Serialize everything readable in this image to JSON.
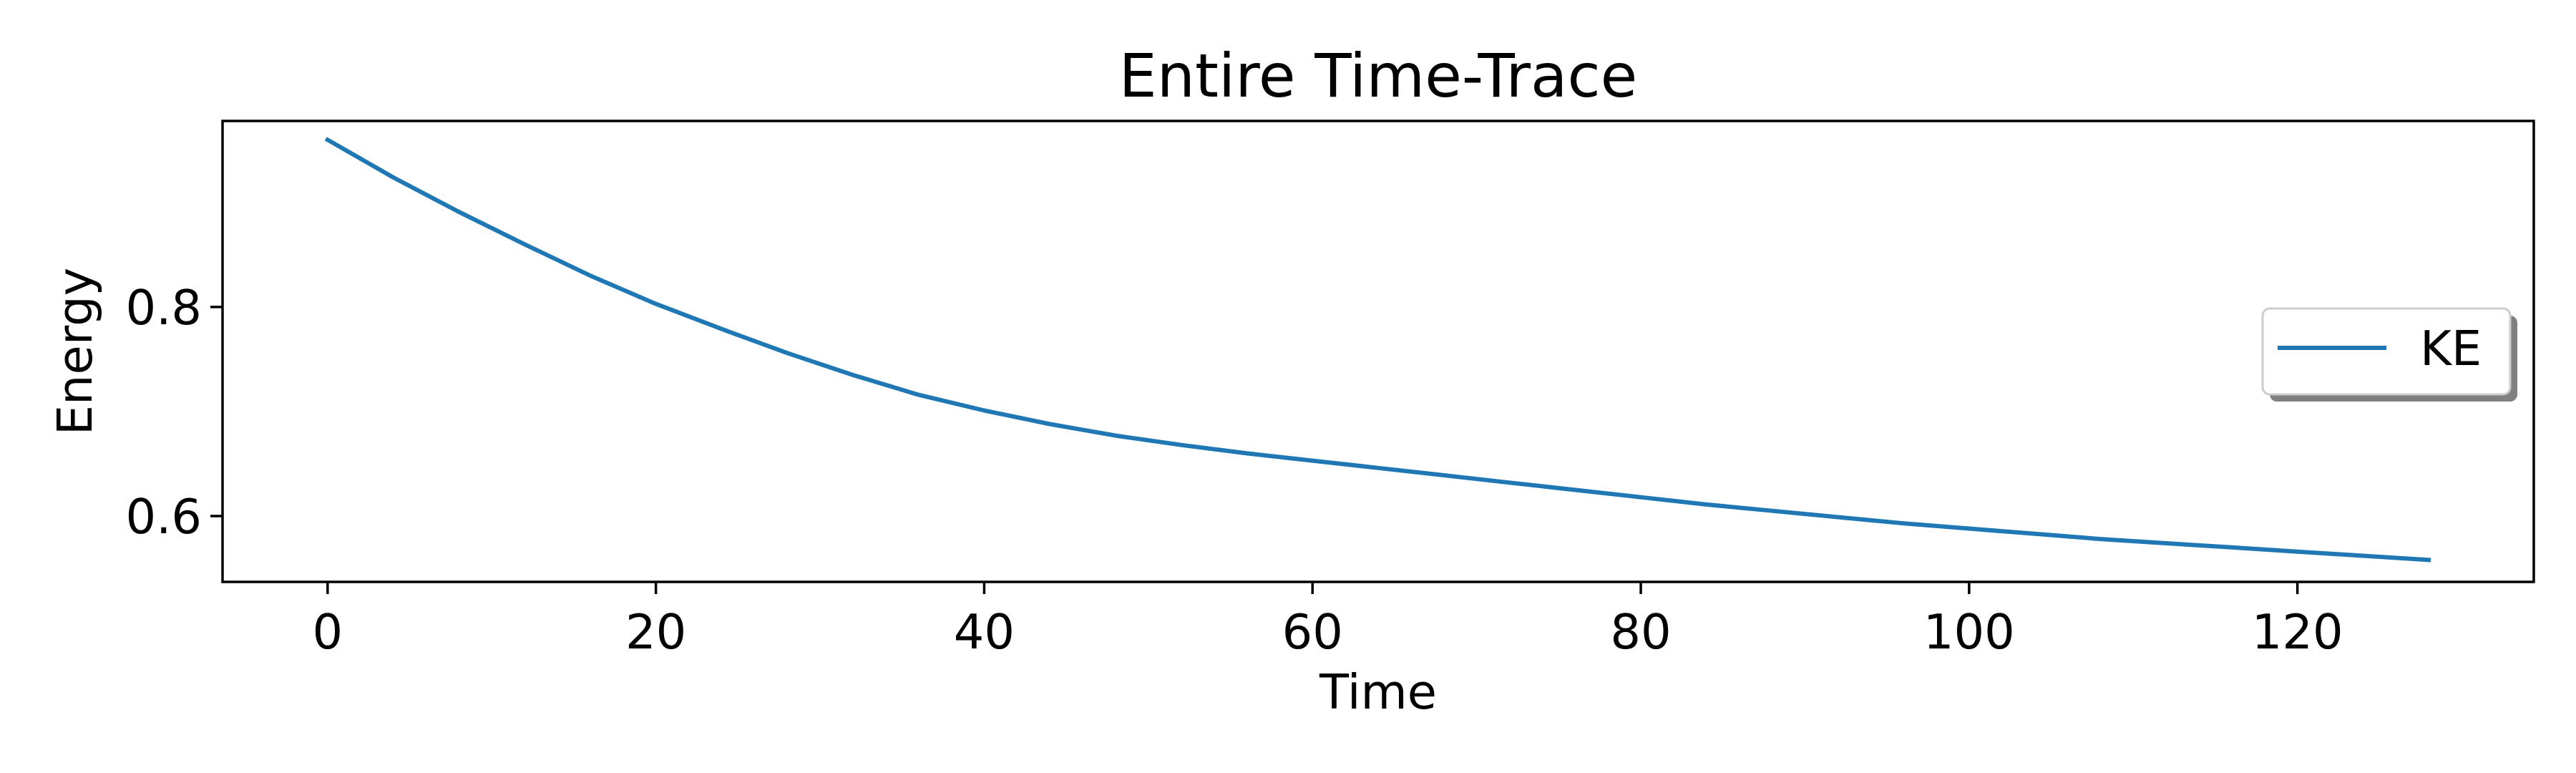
{
  "chart_data": {
    "type": "line",
    "title": "Entire Time-Trace",
    "xlabel": "Time",
    "ylabel": "Energy",
    "xlim": [
      -6.4,
      134.4
    ],
    "ylim": [
      0.537,
      0.978
    ],
    "xticks": [
      0,
      20,
      40,
      60,
      80,
      100,
      120
    ],
    "yticks": [
      0.6,
      0.8
    ],
    "grid": false,
    "legend_position": "center-right",
    "series": [
      {
        "name": "KE",
        "color": "#1f77b4",
        "x": [
          0,
          4,
          8,
          12,
          16,
          20,
          24,
          28,
          32,
          36,
          40,
          44,
          48,
          52,
          56,
          60,
          64,
          68,
          72,
          76,
          80,
          84,
          88,
          92,
          96,
          100,
          104,
          108,
          112,
          116,
          120,
          124,
          128
        ],
        "y": [
          0.96,
          0.924,
          0.891,
          0.86,
          0.83,
          0.803,
          0.779,
          0.756,
          0.735,
          0.716,
          0.701,
          0.688,
          0.677,
          0.668,
          0.66,
          0.653,
          0.646,
          0.639,
          0.632,
          0.625,
          0.618,
          0.611,
          0.605,
          0.599,
          0.593,
          0.588,
          0.583,
          0.578,
          0.574,
          0.57,
          0.566,
          0.562,
          0.558
        ]
      }
    ]
  }
}
